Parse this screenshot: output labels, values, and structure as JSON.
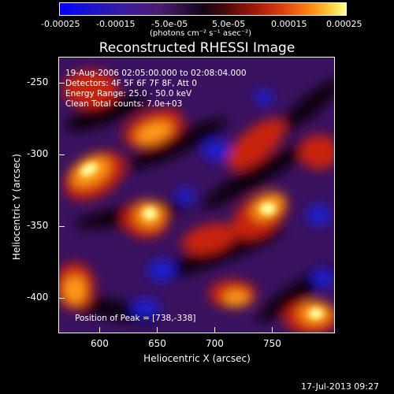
{
  "colorbar": {
    "ticks": [
      "-0.00025",
      "-0.00015",
      "-5.0e-05",
      "5.0e-05",
      "0.00015",
      "0.00025"
    ],
    "unit_label": "(photons cm⁻² s⁻¹ asec⁻²)",
    "colors": {
      "low": "#0000ff",
      "mid": "#120418",
      "high": "#ffff90"
    }
  },
  "plot": {
    "title": "Reconstructed RHESSI Image",
    "info_lines": [
      "19-Aug-2006 02:05:00.000 to 02:08:04.000",
      "Detectors: 4F 5F 6F 7F 8F, Att 0",
      "Energy Range: 25.0 - 50.0 keV",
      "Clean     Total counts: 7.0e+03"
    ],
    "peak_label": "Position of Peak = [738,-338]",
    "x_axis": {
      "title": "Heliocentric X (arcsec)",
      "ticks": [
        "600",
        "650",
        "700",
        "750"
      ]
    },
    "y_axis": {
      "title": "Heliocentric Y (arcsec)",
      "ticks": [
        "-250",
        "-300",
        "-350",
        "-400"
      ]
    }
  },
  "timestamp": "17-Jul-2013 09:27"
}
